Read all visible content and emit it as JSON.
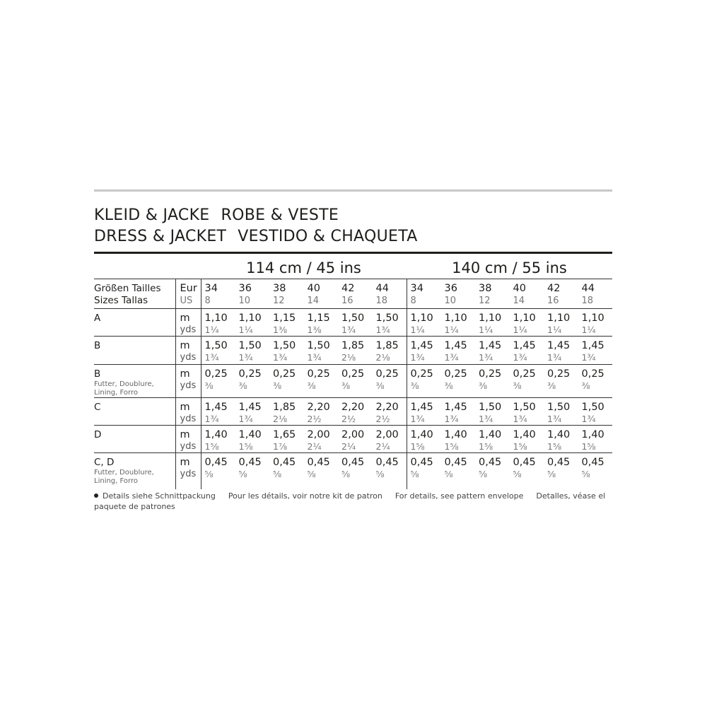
{
  "title": {
    "line1": [
      "KLEID & JACKE",
      "ROBE & VESTE"
    ],
    "line2": [
      "DRESS & JACKET",
      "VESTIDO & CHAQUETA"
    ]
  },
  "widths": [
    "114 cm / 45 ins",
    "140 cm / 55 ins"
  ],
  "size_header": {
    "label1": "Größen Tailles",
    "label2": "Sizes Tallas",
    "unit1": "Eur",
    "unit2": "US",
    "eur": [
      "34",
      "36",
      "38",
      "40",
      "42",
      "44",
      "34",
      "36",
      "38",
      "40",
      "42",
      "44"
    ],
    "us": [
      "8",
      "10",
      "12",
      "14",
      "16",
      "18",
      "8",
      "10",
      "12",
      "14",
      "16",
      "18"
    ]
  },
  "units": {
    "m": "m",
    "yds": "yds"
  },
  "rows": [
    {
      "label": "A",
      "sub": "",
      "m": [
        "1,10",
        "1,10",
        "1,15",
        "1,15",
        "1,50",
        "1,50",
        "1,10",
        "1,10",
        "1,10",
        "1,10",
        "1,10",
        "1,10"
      ],
      "yds": [
        "1¼",
        "1¼",
        "1⅜",
        "1⅜",
        "1¾",
        "1¾",
        "1¼",
        "1¼",
        "1¼",
        "1¼",
        "1¼",
        "1¼"
      ]
    },
    {
      "label": "B",
      "sub": "",
      "m": [
        "1,50",
        "1,50",
        "1,50",
        "1,50",
        "1,85",
        "1,85",
        "1,45",
        "1,45",
        "1,45",
        "1,45",
        "1,45",
        "1,45"
      ],
      "yds": [
        "1¾",
        "1¾",
        "1¾",
        "1¾",
        "2⅛",
        "2⅛",
        "1¾",
        "1¾",
        "1¾",
        "1¾",
        "1¾",
        "1¾"
      ]
    },
    {
      "label": "B",
      "sub": "Futter, Doublure, Lining, Forro",
      "m": [
        "0,25",
        "0,25",
        "0,25",
        "0,25",
        "0,25",
        "0,25",
        "0,25",
        "0,25",
        "0,25",
        "0,25",
        "0,25",
        "0,25"
      ],
      "yds": [
        "⅜",
        "⅜",
        "⅜",
        "⅜",
        "⅜",
        "⅜",
        "⅜",
        "⅜",
        "⅜",
        "⅜",
        "⅜",
        "⅜"
      ]
    },
    {
      "label": "C",
      "sub": "",
      "m": [
        "1,45",
        "1,45",
        "1,85",
        "2,20",
        "2,20",
        "2,20",
        "1,45",
        "1,45",
        "1,50",
        "1,50",
        "1,50",
        "1,50"
      ],
      "yds": [
        "1¾",
        "1¾",
        "2⅛",
        "2½",
        "2½",
        "2½",
        "1¾",
        "1¾",
        "1¾",
        "1¾",
        "1¾",
        "1¾"
      ]
    },
    {
      "label": "D",
      "sub": "",
      "m": [
        "1,40",
        "1,40",
        "1,65",
        "2,00",
        "2,00",
        "2,00",
        "1,40",
        "1,40",
        "1,40",
        "1,40",
        "1,40",
        "1,40"
      ],
      "yds": [
        "1⅝",
        "1⅝",
        "1⅞",
        "2¼",
        "2¼",
        "2¼",
        "1⅝",
        "1⅝",
        "1⅝",
        "1⅝",
        "1⅝",
        "1⅝"
      ]
    },
    {
      "label": "C, D",
      "sub": "Futter, Doublure, Lining, Forro",
      "m": [
        "0,45",
        "0,45",
        "0,45",
        "0,45",
        "0,45",
        "0,45",
        "0,45",
        "0,45",
        "0,45",
        "0,45",
        "0,45",
        "0,45"
      ],
      "yds": [
        "⅝",
        "⅝",
        "⅝",
        "⅝",
        "⅝",
        "⅝",
        "⅝",
        "⅝",
        "⅝",
        "⅝",
        "⅝",
        "⅝"
      ]
    }
  ],
  "footnote": [
    "Details siehe Schnittpackung",
    "Pour les détails, voir notre kit de patron",
    "For details, see pattern envelope",
    "Detalles, véase el paquete de patrones"
  ]
}
